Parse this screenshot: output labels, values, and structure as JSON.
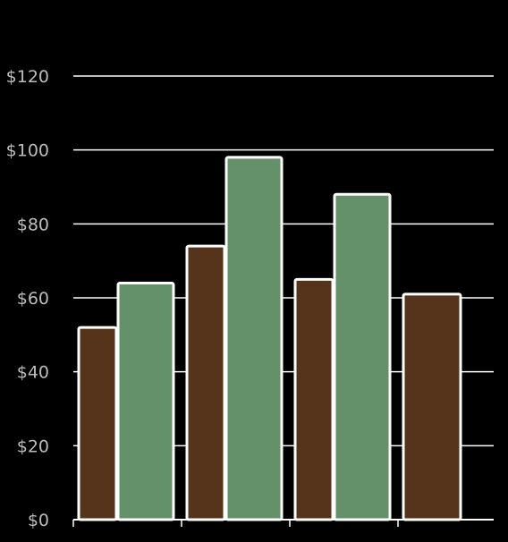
{
  "chart_data": {
    "type": "bar",
    "title": "",
    "xlabel": "",
    "ylabel": "",
    "ylim": [
      0,
      120
    ],
    "yticks": [
      0,
      20,
      40,
      60,
      80,
      100,
      120
    ],
    "ytick_labels": [
      "$0",
      "$20",
      "$40",
      "$60",
      "$80",
      "$100",
      "$120"
    ],
    "grid": true,
    "legend": "none",
    "groups": [
      {
        "values": [
          52,
          64
        ]
      },
      {
        "values": [
          74,
          98
        ]
      },
      {
        "values": [
          65,
          88
        ]
      },
      {
        "values": [
          61
        ]
      }
    ],
    "colors": {
      "series_a": "#56341c",
      "series_b": "#64906a",
      "background": "#000000",
      "grid": "#ffffff",
      "tick_text": "#bdbdbd",
      "bar_border": "#ffffff"
    }
  }
}
